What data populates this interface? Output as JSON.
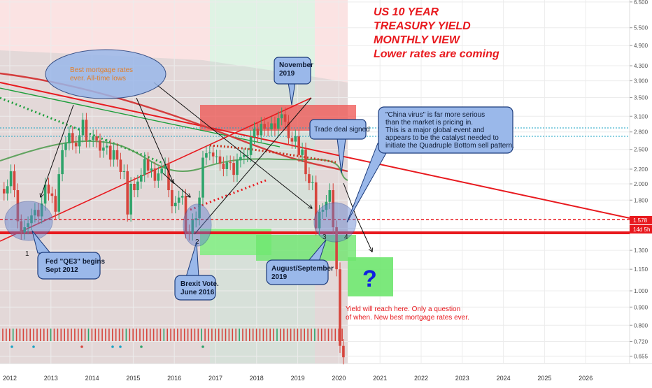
{
  "chart_data": {
    "type": "candlestick",
    "title_lines": [
      "US 10 YEAR",
      "TREASURY YIELD",
      "MONTHLY VIEW",
      "Lower rates are coming"
    ],
    "y_axis": {
      "scale": "log",
      "ticks": [
        "6.500",
        "5.500",
        "4.900",
        "4.300",
        "3.900",
        "3.500",
        "3.100",
        "2.800",
        "2.500",
        "2.200",
        "2.000",
        "1.800",
        "1.500",
        "1.300",
        "1.150",
        "1.000",
        "0.900",
        "0.800",
        "0.720",
        "0.655"
      ],
      "price_label": "1.578",
      "countdown_label": "14d 5h"
    },
    "x_axis": {
      "ticks": [
        "2012",
        "2013",
        "2014",
        "2015",
        "2016",
        "2017",
        "2018",
        "2019",
        "2020",
        "2021",
        "2022",
        "2023",
        "2024",
        "2025",
        "2026"
      ]
    },
    "monthly_closes": [
      1.88,
      1.97,
      2.17,
      1.92,
      1.57,
      1.46,
      1.51,
      1.55,
      1.63,
      1.69,
      1.62,
      1.76,
      1.99,
      1.88,
      1.85,
      1.67,
      2.13,
      2.49,
      2.6,
      2.78,
      2.61,
      2.55,
      2.74,
      3.03,
      2.65,
      2.66,
      2.72,
      2.65,
      2.48,
      2.53,
      2.56,
      2.34,
      2.49,
      2.34,
      2.16,
      2.17,
      1.64,
      2.0,
      1.92,
      2.03,
      2.12,
      2.35,
      2.18,
      2.21,
      2.04,
      2.14,
      2.21,
      2.27,
      1.92,
      1.73,
      1.77,
      1.83,
      1.85,
      1.47,
      1.45,
      1.58,
      1.6,
      1.83,
      2.37,
      2.44,
      2.45,
      2.39,
      2.39,
      2.28,
      2.2,
      2.3,
      2.29,
      2.12,
      2.33,
      2.38,
      2.41,
      2.41,
      2.71,
      2.86,
      2.74,
      2.95,
      2.86,
      2.85,
      2.96,
      2.86,
      3.06,
      3.14,
      2.99,
      2.69,
      2.63,
      2.72,
      2.41,
      2.5,
      2.13,
      2.01,
      2.02,
      1.5,
      1.67,
      1.69,
      1.78,
      1.92,
      1.51,
      1.15,
      0.7,
      0.65
    ],
    "annotations": {
      "top_mortgage": "Best mortgage rates ever. All-time lows",
      "november": [
        "November",
        "2019"
      ],
      "china": [
        "\"China virus\" is far more serious",
        "than the market is pricing in.",
        "This is a major global event and",
        "appears to be the catalyst needed to",
        "initiate the Quadruple Bottom sell pattern."
      ],
      "trade_deal": "Trade deal signed",
      "fed_qe3": [
        "Fed \"QE3\" begins",
        "Sept 2012"
      ],
      "brexit": [
        "Brexit Vote.",
        "June 2016"
      ],
      "august": [
        "August/September",
        "2019"
      ],
      "question": "?",
      "yield_note": [
        "Yield will reach here. Only a question",
        "of when. New best mortgage rates ever."
      ],
      "bottoms": [
        "1",
        "2",
        "3",
        "4"
      ]
    },
    "colors": {
      "up": "#2ea36a",
      "down": "#d6453d",
      "headline": "#e8191e",
      "support": "#e8191e",
      "callout_fill": "#9ab8ea",
      "callout_stroke": "#1b3a7a",
      "target_box": "#6ee66e",
      "question": "#1020e0"
    }
  }
}
